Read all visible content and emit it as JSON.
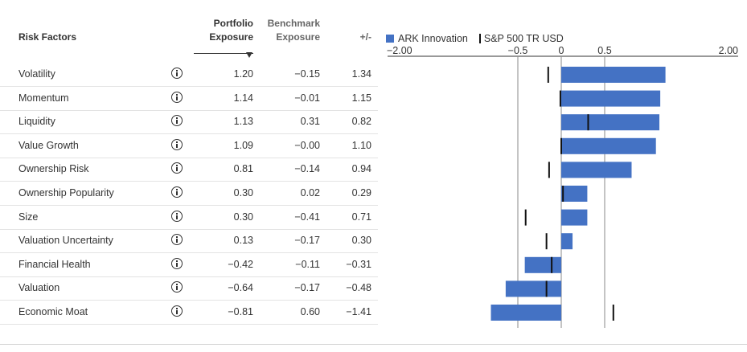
{
  "table": {
    "headers": {
      "risk_factors": "Risk Factors",
      "portfolio": [
        "Portfolio",
        "Exposure"
      ],
      "benchmark": [
        "Benchmark",
        "Exposure"
      ],
      "diff": "+/-"
    },
    "rows": [
      {
        "name": "Volatility",
        "portfolio": "1.20",
        "benchmark": "−0.15",
        "diff": "1.34"
      },
      {
        "name": "Momentum",
        "portfolio": "1.14",
        "benchmark": "−0.01",
        "diff": "1.15"
      },
      {
        "name": "Liquidity",
        "portfolio": "1.13",
        "benchmark": "0.31",
        "diff": "0.82"
      },
      {
        "name": "Value Growth",
        "portfolio": "1.09",
        "benchmark": "−0.00",
        "diff": "1.10"
      },
      {
        "name": "Ownership Risk",
        "portfolio": "0.81",
        "benchmark": "−0.14",
        "diff": "0.94"
      },
      {
        "name": "Ownership Popularity",
        "portfolio": "0.30",
        "benchmark": "0.02",
        "diff": "0.29"
      },
      {
        "name": "Size",
        "portfolio": "0.30",
        "benchmark": "−0.41",
        "diff": "0.71"
      },
      {
        "name": "Valuation Uncertainty",
        "portfolio": "0.13",
        "benchmark": "−0.17",
        "diff": "0.30"
      },
      {
        "name": "Financial Health",
        "portfolio": "−0.42",
        "benchmark": "−0.11",
        "diff": "−0.31"
      },
      {
        "name": "Valuation",
        "portfolio": "−0.64",
        "benchmark": "−0.17",
        "diff": "−0.48"
      },
      {
        "name": "Economic Moat",
        "portfolio": "−0.81",
        "benchmark": "0.60",
        "diff": "−1.41"
      }
    ]
  },
  "chart_data": {
    "type": "bar",
    "orientation": "horizontal",
    "categories": [
      "Volatility",
      "Momentum",
      "Liquidity",
      "Value Growth",
      "Ownership Risk",
      "Ownership Popularity",
      "Size",
      "Valuation Uncertainty",
      "Financial Health",
      "Valuation",
      "Economic Moat"
    ],
    "series": [
      {
        "name": "ARK Innovation",
        "values": [
          1.2,
          1.14,
          1.13,
          1.09,
          0.81,
          0.3,
          0.3,
          0.13,
          -0.42,
          -0.64,
          -0.81
        ],
        "mark": "bar",
        "color": "#4472c4"
      },
      {
        "name": "S&P 500 TR USD",
        "values": [
          -0.15,
          -0.01,
          0.31,
          -0.0,
          -0.14,
          0.02,
          -0.41,
          -0.17,
          -0.11,
          -0.17,
          0.6
        ],
        "mark": "tick",
        "color": "#111111"
      }
    ],
    "xlim": [
      -2.0,
      2.0
    ],
    "x_tick_labels": [
      {
        "value": -2.0,
        "label": "−2.00"
      },
      {
        "value": -0.5,
        "label": "−0.5"
      },
      {
        "value": 0,
        "label": "0"
      },
      {
        "value": 0.5,
        "label": "0.5"
      },
      {
        "value": 2.0,
        "label": "2.00"
      }
    ],
    "reference_lines": [
      -0.5,
      0,
      0.5
    ],
    "legend_position": "top-left"
  }
}
